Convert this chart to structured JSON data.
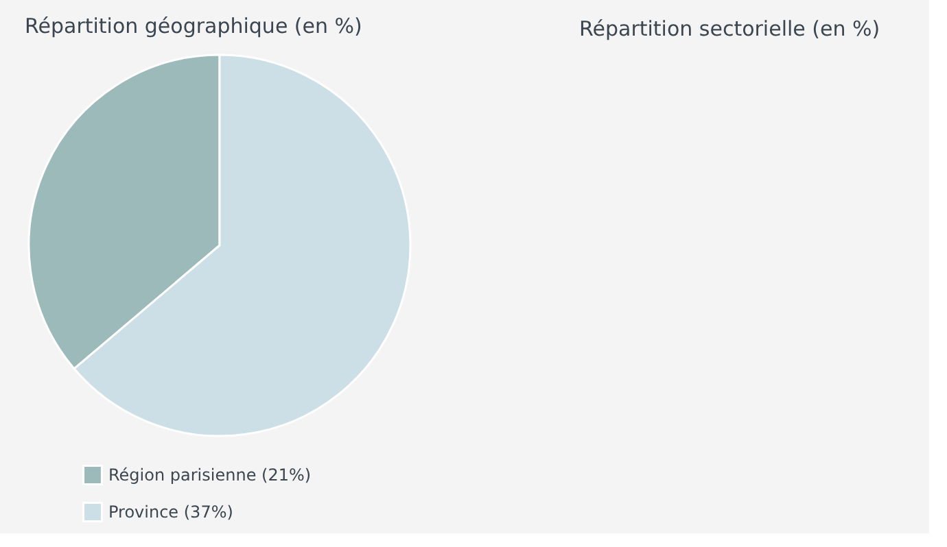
{
  "chart_data": [
    {
      "type": "pie",
      "title": "Répartition géographique (en %)",
      "categories": [
        "Région parisienne (21%)",
        "Province (37%)"
      ],
      "values": [
        21,
        37
      ],
      "colors": [
        "#9dbabb",
        "#ccdee6"
      ],
      "legend": "bottom left"
    },
    {
      "type": "other",
      "title": "Répartition sectorielle (en %)"
    }
  ]
}
